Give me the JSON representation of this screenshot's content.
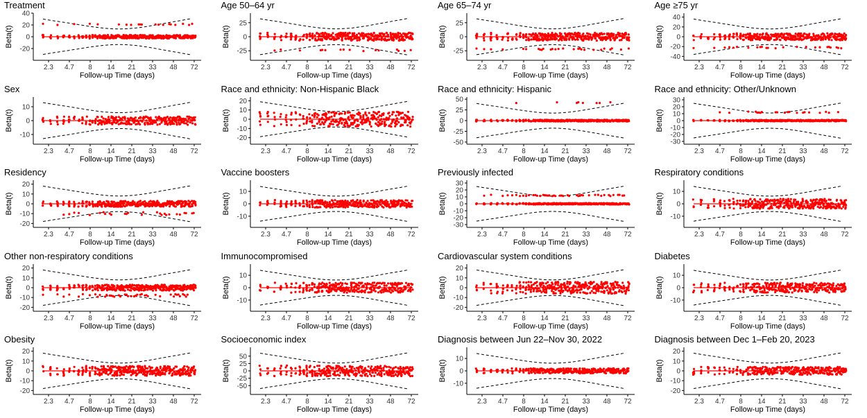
{
  "chart_data": [
    {
      "type": "scatter",
      "title": "Treatment",
      "ylabel": "Beta(t)",
      "xlabel": "Follow-up Time (days)",
      "yticks": [
        40,
        20,
        0,
        -20
      ],
      "ylim": [
        -40,
        40
      ],
      "band_halfwidth": 30,
      "dots": {
        "main_spread": 3,
        "upper_level": 21,
        "upper_density": 0.25
      },
      "xticks": [
        "2.3",
        "4.7",
        "8",
        "14",
        "21",
        "33",
        "48",
        "72"
      ]
    },
    {
      "type": "scatter",
      "title": "Age 50–64 yr",
      "ylabel": "Beta(t)",
      "xlabel": "Follow-up Time (days)",
      "yticks": [
        25,
        0,
        -25
      ],
      "ylim": [
        -42,
        42
      ],
      "band_halfwidth": 32,
      "dots": {
        "main_spread": 7,
        "lower_level": -24,
        "lower_density": 0.3
      },
      "xticks": [
        "2.3",
        "4.7",
        "8",
        "14",
        "21",
        "33",
        "48",
        "72"
      ]
    },
    {
      "type": "scatter",
      "title": "Age 65–74 yr",
      "ylabel": "Beta(t)",
      "xlabel": "Follow-up Time (days)",
      "yticks": [
        25,
        0,
        -25
      ],
      "ylim": [
        -42,
        42
      ],
      "band_halfwidth": 32,
      "dots": {
        "main_spread": 7,
        "lower_level": -22,
        "lower_density": 0.3
      },
      "xticks": [
        "2.3",
        "4.7",
        "8",
        "14",
        "21",
        "33",
        "48",
        "72"
      ]
    },
    {
      "type": "scatter",
      "title": "Age ≥75 yr",
      "ylabel": "Beta(t)",
      "xlabel": "Follow-up Time (days)",
      "yticks": [
        40,
        20,
        0,
        -20,
        -40
      ],
      "ylim": [
        -48,
        48
      ],
      "band_halfwidth": 36,
      "dots": {
        "main_spread": 7,
        "lower_level": -22,
        "lower_density": 0.3
      },
      "xticks": [
        "2.3",
        "4.7",
        "8",
        "14",
        "21",
        "33",
        "48",
        "72"
      ]
    },
    {
      "type": "scatter",
      "title": "Sex",
      "ylabel": "Beta(t)",
      "xlabel": "Follow-up Time (days)",
      "yticks": [
        10,
        0,
        -10
      ],
      "ylim": [
        -17,
        17
      ],
      "band_halfwidth": 13,
      "dots": {
        "main_spread": 3
      },
      "xticks": [
        "2.3",
        "4.7",
        "8",
        "14",
        "21",
        "33",
        "48",
        "72"
      ]
    },
    {
      "type": "scatter",
      "title": "Race and ethnicity: Non-Hispanic Black",
      "ylabel": "Beta(t)",
      "xlabel": "Follow-up Time (days)",
      "yticks": [
        20,
        10,
        0,
        -10,
        -20
      ],
      "ylim": [
        -27,
        24
      ],
      "band_halfwidth": 19,
      "dots": {
        "main_spread": 8
      },
      "xticks": [
        "2.3",
        "4.7",
        "8",
        "14",
        "21",
        "33",
        "48",
        "72"
      ]
    },
    {
      "type": "scatter",
      "title": "Race and ethnicity: Hispanic",
      "ylabel": "Beta(t)",
      "xlabel": "Follow-up Time (days)",
      "yticks": [
        50,
        25,
        0,
        -25,
        -50
      ],
      "ylim": [
        -55,
        55
      ],
      "band_halfwidth": 40,
      "dots": {
        "main_spread": 2,
        "upper_level": 42,
        "upper_density": 0.08
      },
      "xticks": [
        "2.3",
        "4.7",
        "8",
        "14",
        "21",
        "33",
        "48",
        "72"
      ]
    },
    {
      "type": "scatter",
      "title": "Race and ethnicity: Other/Unknown",
      "ylabel": "Beta(t)",
      "xlabel": "Follow-up Time (days)",
      "yticks": [
        30,
        20,
        10,
        0,
        -10,
        -20,
        -30
      ],
      "ylim": [
        -34,
        34
      ],
      "band_halfwidth": 25,
      "dots": {
        "main_spread": 1,
        "upper_level": 12,
        "upper_density": 0.3
      },
      "xticks": [
        "2.3",
        "4.7",
        "8",
        "14",
        "21",
        "33",
        "48",
        "72"
      ]
    },
    {
      "type": "scatter",
      "title": "Residency",
      "ylabel": "Beta(t)",
      "xlabel": "Follow-up Time (days)",
      "yticks": [
        20,
        10,
        0,
        -10,
        -20
      ],
      "ylim": [
        -24,
        24
      ],
      "band_halfwidth": 18,
      "dots": {
        "main_spread": 3,
        "lower_level": -10,
        "lower_density": 0.4
      },
      "xticks": [
        "2.3",
        "4.7",
        "8",
        "14",
        "21",
        "33",
        "48",
        "72"
      ]
    },
    {
      "type": "scatter",
      "title": "Vaccine boosters",
      "ylabel": "Beta(t)",
      "xlabel": "Follow-up Time (days)",
      "yticks": [
        10,
        0,
        -10
      ],
      "ylim": [
        -19,
        19
      ],
      "band_halfwidth": 14,
      "dots": {
        "main_spread": 3
      },
      "xticks": [
        "2.3",
        "4.7",
        "8",
        "14",
        "21",
        "33",
        "48",
        "72"
      ]
    },
    {
      "type": "scatter",
      "title": "Previously infected",
      "ylabel": "Beta(t)",
      "xlabel": "Follow-up Time (days)",
      "yticks": [
        30,
        20,
        10,
        0,
        -10,
        -20,
        -30
      ],
      "ylim": [
        -34,
        34
      ],
      "band_halfwidth": 25,
      "dots": {
        "main_spread": 1,
        "upper_level": 12,
        "upper_density": 0.6
      },
      "xticks": [
        "2.3",
        "4.7",
        "8",
        "14",
        "21",
        "33",
        "48",
        "72"
      ]
    },
    {
      "type": "scatter",
      "title": "Respiratory conditions",
      "ylabel": "Beta(t)",
      "xlabel": "Follow-up Time (days)",
      "yticks": [
        10,
        0,
        -10
      ],
      "ylim": [
        -19,
        19
      ],
      "band_halfwidth": 14,
      "dots": {
        "main_spread": 4
      },
      "xticks": [
        "2.3",
        "4.7",
        "8",
        "14",
        "21",
        "33",
        "48",
        "72"
      ]
    },
    {
      "type": "scatter",
      "title": "Other non-respiratory conditions",
      "ylabel": "Beta(t)",
      "xlabel": "Follow-up Time (days)",
      "yticks": [
        20,
        10,
        0,
        -10,
        -20
      ],
      "ylim": [
        -24,
        24
      ],
      "band_halfwidth": 18,
      "dots": {
        "main_spread": 3,
        "lower_level": -8,
        "lower_density": 0.5
      },
      "xticks": [
        "2.3",
        "4.7",
        "8",
        "14",
        "21",
        "33",
        "48",
        "72"
      ]
    },
    {
      "type": "scatter",
      "title": "Immunocompromised",
      "ylabel": "Beta(t)",
      "xlabel": "Follow-up Time (days)",
      "yticks": [
        10,
        0,
        -10
      ],
      "ylim": [
        -19,
        19
      ],
      "band_halfwidth": 14,
      "dots": {
        "main_spread": 4
      },
      "xticks": [
        "2.3",
        "4.7",
        "8",
        "14",
        "21",
        "33",
        "48",
        "72"
      ]
    },
    {
      "type": "scatter",
      "title": "Cardiovascular system conditions",
      "ylabel": "Beta(t)",
      "xlabel": "Follow-up Time (days)",
      "yticks": [
        20,
        10,
        0,
        -10,
        -20
      ],
      "ylim": [
        -24,
        24
      ],
      "band_halfwidth": 18,
      "dots": {
        "main_spread": 6
      },
      "xticks": [
        "2.3",
        "4.7",
        "8",
        "14",
        "21",
        "33",
        "48",
        "72"
      ]
    },
    {
      "type": "scatter",
      "title": "Diabetes",
      "ylabel": "Beta(t)",
      "xlabel": "Follow-up Time (days)",
      "yticks": [
        10,
        0,
        -10
      ],
      "ylim": [
        -19,
        19
      ],
      "band_halfwidth": 14,
      "dots": {
        "main_spread": 4
      },
      "xticks": [
        "2.3",
        "4.7",
        "8",
        "14",
        "21",
        "33",
        "48",
        "72"
      ]
    },
    {
      "type": "scatter",
      "title": "Obesity",
      "ylabel": "Beta(t)",
      "xlabel": "Follow-up Time (days)",
      "yticks": [
        20,
        10,
        0,
        -10,
        -20
      ],
      "ylim": [
        -24,
        24
      ],
      "band_halfwidth": 18,
      "dots": {
        "main_spread": 5
      },
      "xticks": [
        "2.3",
        "4.7",
        "8",
        "14",
        "21",
        "33",
        "48",
        "72"
      ]
    },
    {
      "type": "scatter",
      "title": "Socioeconomic index",
      "ylabel": "Beta(t)",
      "xlabel": "Follow-up Time (days)",
      "yticks": [
        50,
        25,
        0,
        -25,
        -50
      ],
      "ylim": [
        -80,
        80
      ],
      "band_halfwidth": 60,
      "dots": {
        "main_spread": 18
      },
      "xticks": [
        "2.3",
        "4.7",
        "8",
        "14",
        "21",
        "33",
        "48",
        "72"
      ]
    },
    {
      "type": "scatter",
      "title": "Diagnosis between Jun 22–Nov 30, 2022",
      "ylabel": "Beta(t)",
      "xlabel": "Follow-up Time (days)",
      "yticks": [
        10,
        0,
        -10
      ],
      "ylim": [
        -19,
        19
      ],
      "band_halfwidth": 14,
      "dots": {
        "main_spread": 2
      },
      "xticks": [
        "2.3",
        "4.7",
        "8",
        "14",
        "21",
        "33",
        "48",
        "72"
      ]
    },
    {
      "type": "scatter",
      "title": "Diagnosis between Dec 1–Feb 20, 2023",
      "ylabel": "Beta(t)",
      "xlabel": "Follow-up Time (days)",
      "yticks": [
        20,
        10,
        0,
        -10,
        -20
      ],
      "ylim": [
        -24,
        24
      ],
      "band_halfwidth": 18,
      "dots": {
        "main_spread": 4
      },
      "xticks": [
        "2.3",
        "4.7",
        "8",
        "14",
        "21",
        "33",
        "48",
        "72"
      ]
    }
  ],
  "colors": {
    "points": "#ff0000",
    "line": "#ff0000",
    "band": "#000000",
    "axis": "#000000"
  }
}
